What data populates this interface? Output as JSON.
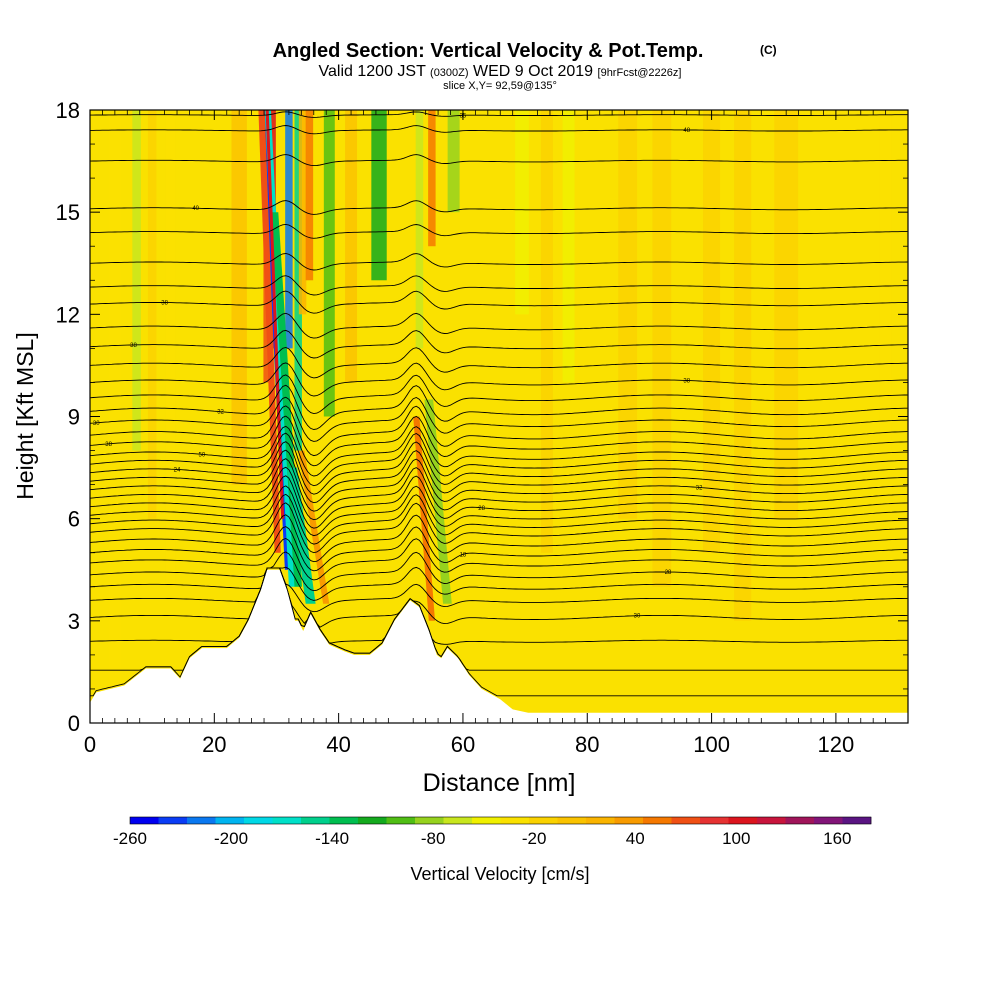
{
  "chart_data": {
    "type": "heatmap",
    "title": "Angled Section: Vertical Velocity & Pot.Temp.",
    "title_mark": "(C)",
    "subtitle_parts": [
      "Valid 1200 JST",
      "(0300Z)",
      "WED 9 Oct 2019",
      "[9hrFcst@2226z]"
    ],
    "slice_label": "slice X,Y= 92,59@135°",
    "xlabel": "Distance [nm]",
    "ylabel": "Height [Kft MSL]",
    "xlim": [
      0,
      131.6
    ],
    "ylim": [
      0,
      18
    ],
    "x_ticks": [
      0,
      20,
      40,
      60,
      80,
      100,
      120
    ],
    "y_ticks": [
      0,
      3,
      6,
      9,
      12,
      15,
      18
    ],
    "colorbar": {
      "label": "Vertical Velocity [cm/s]",
      "tick_labels": [
        "-260",
        "-200",
        "-140",
        "-80",
        "-20",
        "40",
        "100",
        "160"
      ],
      "min": -260,
      "max": 180,
      "step": 20,
      "colors": [
        "#0000f0",
        "#0a3cf5",
        "#0a78f0",
        "#00b4f0",
        "#00d8e6",
        "#00e0c8",
        "#00d08c",
        "#00be50",
        "#14aa1e",
        "#50be14",
        "#96d21e",
        "#c8e61e",
        "#f0f000",
        "#fae100",
        "#fad200",
        "#fac300",
        "#fab400",
        "#f89b00",
        "#f57800",
        "#f05014",
        "#e63232",
        "#dc141e",
        "#c8143c",
        "#a0145a",
        "#821478",
        "#5a1482"
      ]
    },
    "velocity_columns": [
      {
        "x": 4,
        "value": 10,
        "top": 18,
        "bottom": 0
      },
      {
        "x": 7.5,
        "value": -30,
        "top": 18,
        "bottom": 8
      },
      {
        "x": 10,
        "value": 20,
        "top": 18,
        "bottom": 6
      },
      {
        "x": 13,
        "value": 10,
        "top": 18,
        "bottom": 4
      },
      {
        "x": 24,
        "value": 40,
        "top": 18,
        "bottom": 7
      },
      {
        "x": 28.5,
        "value": 120,
        "top": 18,
        "bottom": 10
      },
      {
        "x": 29.3,
        "value": 160,
        "top": 18,
        "bottom": 11
      },
      {
        "x": 32,
        "value": -220,
        "top": 18,
        "bottom": 11
      },
      {
        "x": 33.5,
        "value": -140,
        "top": 18,
        "bottom": 8
      },
      {
        "x": 34.2,
        "value": 60,
        "top": 18,
        "bottom": 12
      },
      {
        "x": 35.3,
        "value": 100,
        "top": 18,
        "bottom": 13
      },
      {
        "x": 38.5,
        "value": -80,
        "top": 18,
        "bottom": 9
      },
      {
        "x": 42,
        "value": 40,
        "top": 18,
        "bottom": 10
      },
      {
        "x": 46.5,
        "value": -100,
        "top": 18,
        "bottom": 13
      },
      {
        "x": 53,
        "value": -40,
        "top": 18,
        "bottom": 11
      },
      {
        "x": 55,
        "value": 100,
        "top": 18,
        "bottom": 14
      },
      {
        "x": 58.5,
        "value": -60,
        "top": 18,
        "bottom": 15
      },
      {
        "x": 69.5,
        "value": -20,
        "top": 18,
        "bottom": 12
      },
      {
        "x": 73.5,
        "value": 20,
        "top": 18,
        "bottom": 5
      },
      {
        "x": 77,
        "value": -20,
        "top": 18,
        "bottom": 10
      },
      {
        "x": 86.5,
        "value": 30,
        "top": 18,
        "bottom": 6
      },
      {
        "x": 92,
        "value": 20,
        "top": 18,
        "bottom": 4
      },
      {
        "x": 100,
        "value": 30,
        "top": 18,
        "bottom": 5
      },
      {
        "x": 105,
        "value": 20,
        "top": 18,
        "bottom": 3
      },
      {
        "x": 112,
        "value": 20,
        "top": 18,
        "bottom": 6
      },
      {
        "x": 128,
        "value": 10,
        "top": 18,
        "bottom": 8
      }
    ],
    "velocity_features": [
      {
        "x0": 31.7,
        "x1": 28.0,
        "y0": 4.5,
        "y1": 18,
        "width": 0.7,
        "value": -230
      },
      {
        "x0": 32.5,
        "x1": 28.6,
        "y0": 4.0,
        "y1": 18,
        "width": 1.0,
        "value": -160
      },
      {
        "x0": 33.5,
        "x1": 29.7,
        "y0": 4.0,
        "y1": 15,
        "width": 1.2,
        "value": -120
      },
      {
        "x0": 30.2,
        "x1": 27.6,
        "y0": 5.0,
        "y1": 18,
        "width": 1.0,
        "value": 120
      },
      {
        "x0": 31.0,
        "x1": 28.5,
        "y0": 6.0,
        "y1": 18,
        "width": 0.5,
        "value": 170
      },
      {
        "x0": 35.5,
        "x1": 32.5,
        "y0": 3.5,
        "y1": 7.5,
        "width": 1.6,
        "value": -140
      },
      {
        "x0": 38.0,
        "x1": 34.0,
        "y0": 3.5,
        "y1": 8.0,
        "width": 1.0,
        "value": 80
      },
      {
        "x0": 55.0,
        "x1": 52.5,
        "y0": 3.0,
        "y1": 9.0,
        "width": 1.0,
        "value": 100
      },
      {
        "x0": 57.5,
        "x1": 54.5,
        "y0": 3.5,
        "y1": 9.5,
        "width": 1.4,
        "value": -60
      }
    ],
    "terrain": [
      [
        0,
        0.6
      ],
      [
        1,
        0.9
      ],
      [
        5.5,
        1.1
      ],
      [
        9,
        1.6
      ],
      [
        13,
        1.6
      ],
      [
        14.5,
        1.3
      ],
      [
        16,
        1.9
      ],
      [
        18,
        2.2
      ],
      [
        22,
        2.2
      ],
      [
        24,
        2.5
      ],
      [
        25.5,
        3.0
      ],
      [
        27.5,
        3.9
      ],
      [
        28.5,
        4.5
      ],
      [
        30.5,
        4.5
      ],
      [
        31.7,
        3.9
      ],
      [
        33,
        3.0
      ],
      [
        33.5,
        3.0
      ],
      [
        34.3,
        2.7
      ],
      [
        35.5,
        3.2
      ],
      [
        37,
        2.7
      ],
      [
        38.5,
        2.3
      ],
      [
        41,
        2.1
      ],
      [
        42.5,
        2.0
      ],
      [
        45,
        2.0
      ],
      [
        47,
        2.3
      ],
      [
        49,
        3.0
      ],
      [
        51.5,
        3.6
      ],
      [
        53,
        3.4
      ],
      [
        54.5,
        2.7
      ],
      [
        55.8,
        2.0
      ],
      [
        56.5,
        1.9
      ],
      [
        57.5,
        2.2
      ],
      [
        59.2,
        1.9
      ],
      [
        61,
        1.4
      ],
      [
        63,
        1.0
      ],
      [
        66,
        0.7
      ],
      [
        68,
        0.4
      ],
      [
        70.5,
        0.3
      ],
      [
        75,
        0.3
      ],
      [
        131.6,
        0.3
      ]
    ],
    "isentropes": [
      {
        "base": 0.8,
        "amp": 0.0,
        "label": "",
        "label_x": 0
      },
      {
        "base": 1.55,
        "amp": 0.0,
        "label": "",
        "label_x": 0
      },
      {
        "base": 2.4,
        "amp": 0.05,
        "label": "",
        "label_x": 0
      },
      {
        "base": 3.1,
        "amp": 0.1,
        "label": "30",
        "label_x": 88
      },
      {
        "base": 3.6,
        "amp": 0.1,
        "label": "",
        "label_x": 0
      },
      {
        "base": 4.0,
        "amp": 0.12,
        "label": "",
        "label_x": 0
      },
      {
        "base": 4.35,
        "amp": 0.14,
        "label": "28",
        "label_x": 93
      },
      {
        "base": 4.7,
        "amp": 0.15,
        "label": "",
        "label_x": 0
      },
      {
        "base": 5.0,
        "amp": 0.16,
        "label": "18",
        "label_x": 60
      },
      {
        "base": 5.3,
        "amp": 0.17,
        "label": "",
        "label_x": 0
      },
      {
        "base": 5.6,
        "amp": 0.18,
        "label": "",
        "label_x": 0
      },
      {
        "base": 5.85,
        "amp": 0.18,
        "label": "",
        "label_x": 0
      },
      {
        "base": 6.1,
        "amp": 0.18,
        "label": "",
        "label_x": 0
      },
      {
        "base": 6.35,
        "amp": 0.19,
        "label": "28",
        "label_x": 63
      },
      {
        "base": 6.6,
        "amp": 0.19,
        "label": "",
        "label_x": 0
      },
      {
        "base": 6.85,
        "amp": 0.19,
        "label": "32",
        "label_x": 98
      },
      {
        "base": 7.1,
        "amp": 0.19,
        "label": "",
        "label_x": 0
      },
      {
        "base": 7.35,
        "amp": 0.19,
        "label": "24",
        "label_x": 14
      },
      {
        "base": 7.6,
        "amp": 0.19,
        "label": "",
        "label_x": 0
      },
      {
        "base": 7.85,
        "amp": 0.18,
        "label": "50",
        "label_x": 18
      },
      {
        "base": 8.15,
        "amp": 0.18,
        "label": "38",
        "label_x": 3
      },
      {
        "base": 8.45,
        "amp": 0.18,
        "label": "",
        "label_x": 0
      },
      {
        "base": 8.8,
        "amp": 0.16,
        "label": "30",
        "label_x": 1
      },
      {
        "base": 9.15,
        "amp": 0.16,
        "label": "32",
        "label_x": 21
      },
      {
        "base": 9.55,
        "amp": 0.14,
        "label": "",
        "label_x": 0
      },
      {
        "base": 10.0,
        "amp": 0.12,
        "label": "38",
        "label_x": 96
      },
      {
        "base": 10.5,
        "amp": 0.11,
        "label": "",
        "label_x": 0
      },
      {
        "base": 11.05,
        "amp": 0.1,
        "label": "38",
        "label_x": 7
      },
      {
        "base": 11.6,
        "amp": 0.09,
        "label": "",
        "label_x": 0
      },
      {
        "base": 12.3,
        "amp": 0.08,
        "label": "38",
        "label_x": 12
      },
      {
        "base": 12.8,
        "amp": 0.07,
        "label": "",
        "label_x": 0
      },
      {
        "base": 13.5,
        "amp": 0.06,
        "label": "",
        "label_x": 0
      },
      {
        "base": 14.4,
        "amp": 0.05,
        "label": "",
        "label_x": 0
      },
      {
        "base": 15.1,
        "amp": 0.05,
        "label": "40",
        "label_x": 17
      },
      {
        "base": 16.5,
        "amp": 0.04,
        "label": "",
        "label_x": 0
      },
      {
        "base": 17.4,
        "amp": 0.03,
        "label": "48",
        "label_x": 96
      },
      {
        "base": 17.85,
        "amp": 0.02,
        "label": "35",
        "label_x": 60
      }
    ],
    "grid": false,
    "legend": "colorbar-bottom"
  }
}
